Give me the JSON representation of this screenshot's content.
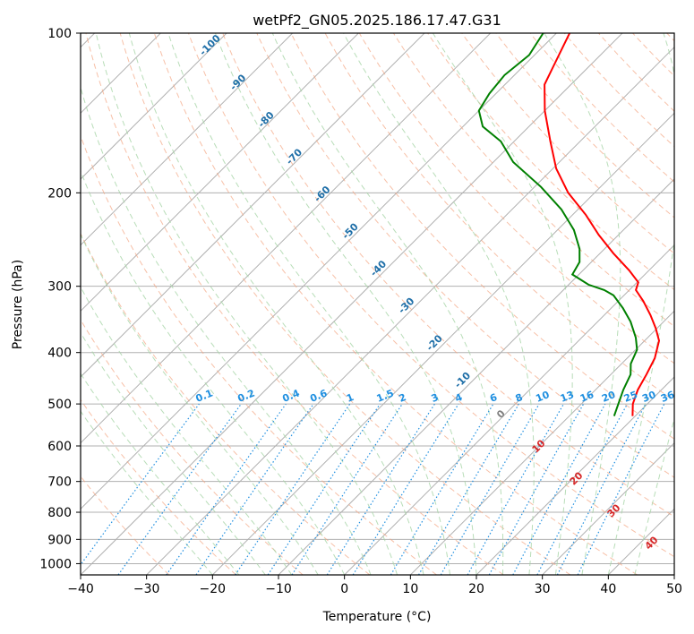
{
  "chart_data": {
    "type": "line",
    "title": "wetPf2_GN05.2025.186.17.47.G31",
    "xlabel": "Temperature (°C)",
    "ylabel": "Pressure (hPa)",
    "xlim": [
      -40,
      50
    ],
    "ylim": [
      1050,
      100
    ],
    "y_scale": "log",
    "skew": "skew-T log-p",
    "x_ticks": [
      "−40",
      "−30",
      "−20",
      "−10",
      "0",
      "10",
      "20",
      "30",
      "40",
      "50"
    ],
    "x_tick_values": [
      -40,
      -30,
      -20,
      -10,
      0,
      10,
      20,
      30,
      40,
      50
    ],
    "y_ticks": [
      100,
      200,
      300,
      400,
      500,
      600,
      700,
      800,
      900,
      1000
    ],
    "grid": true,
    "background_lines": {
      "isotherms_color": "#b0b0b0",
      "dry_adiabats_color": "#f4a582",
      "moist_adiabats_color": "#a6d5a6",
      "mixing_ratio_color": "#1f8fe0"
    },
    "series": [
      {
        "color": "#ff0000",
        "points": [
          {
            "p": 527,
            "t": 19.6
          },
          {
            "p": 500,
            "t": 17.8
          },
          {
            "p": 470,
            "t": 16.4
          },
          {
            "p": 440,
            "t": 15.4
          },
          {
            "p": 410,
            "t": 14.2
          },
          {
            "p": 380,
            "t": 12.2
          },
          {
            "p": 360,
            "t": 9.8
          },
          {
            "p": 340,
            "t": 7.0
          },
          {
            "p": 320,
            "t": 3.8
          },
          {
            "p": 305,
            "t": 1.0
          },
          {
            "p": 295,
            "t": 0.2
          },
          {
            "p": 280,
            "t": -3.0
          },
          {
            "p": 260,
            "t": -8.0
          },
          {
            "p": 240,
            "t": -13.0
          },
          {
            "p": 220,
            "t": -18.0
          },
          {
            "p": 200,
            "t": -24.0
          },
          {
            "p": 180,
            "t": -29.5
          },
          {
            "p": 160,
            "t": -34.5
          },
          {
            "p": 140,
            "t": -40.0
          },
          {
            "p": 125,
            "t": -44.0
          },
          {
            "p": 115,
            "t": -45.5
          },
          {
            "p": 100,
            "t": -48.0
          }
        ]
      },
      {
        "color": "#008000",
        "points": [
          {
            "p": 527,
            "t": 16.8
          },
          {
            "p": 500,
            "t": 15.6
          },
          {
            "p": 470,
            "t": 14.2
          },
          {
            "p": 440,
            "t": 13.0
          },
          {
            "p": 420,
            "t": 11.4
          },
          {
            "p": 395,
            "t": 10.2
          },
          {
            "p": 375,
            "t": 8.2
          },
          {
            "p": 350,
            "t": 5.0
          },
          {
            "p": 330,
            "t": 1.8
          },
          {
            "p": 312,
            "t": -1.6
          },
          {
            "p": 305,
            "t": -3.8
          },
          {
            "p": 298,
            "t": -7.0
          },
          {
            "p": 285,
            "t": -11.0
          },
          {
            "p": 270,
            "t": -11.8
          },
          {
            "p": 255,
            "t": -13.8
          },
          {
            "p": 235,
            "t": -17.5
          },
          {
            "p": 215,
            "t": -22.5
          },
          {
            "p": 195,
            "t": -29.0
          },
          {
            "p": 175,
            "t": -37.0
          },
          {
            "p": 160,
            "t": -42.0
          },
          {
            "p": 150,
            "t": -47.0
          },
          {
            "p": 140,
            "t": -50.0
          },
          {
            "p": 130,
            "t": -51.0
          },
          {
            "p": 120,
            "t": -51.5
          },
          {
            "p": 110,
            "t": -50.8
          },
          {
            "p": 100,
            "t": -52.0
          }
        ]
      }
    ],
    "annotations": {
      "dry_adiabat_labels": [
        "-100",
        "-90",
        "-80",
        "-70",
        "-60",
        "-50",
        "-40",
        "-30",
        "-20",
        "-10",
        "0",
        "10",
        "20",
        "30",
        "40"
      ],
      "mixing_ratio_labels": [
        "0.1",
        "0.2",
        "0.4",
        "0.6",
        "1",
        "1.5",
        "2",
        "3",
        "4",
        "6",
        "8",
        "10",
        "13",
        "16",
        "20",
        "25",
        "30",
        "36"
      ]
    }
  }
}
